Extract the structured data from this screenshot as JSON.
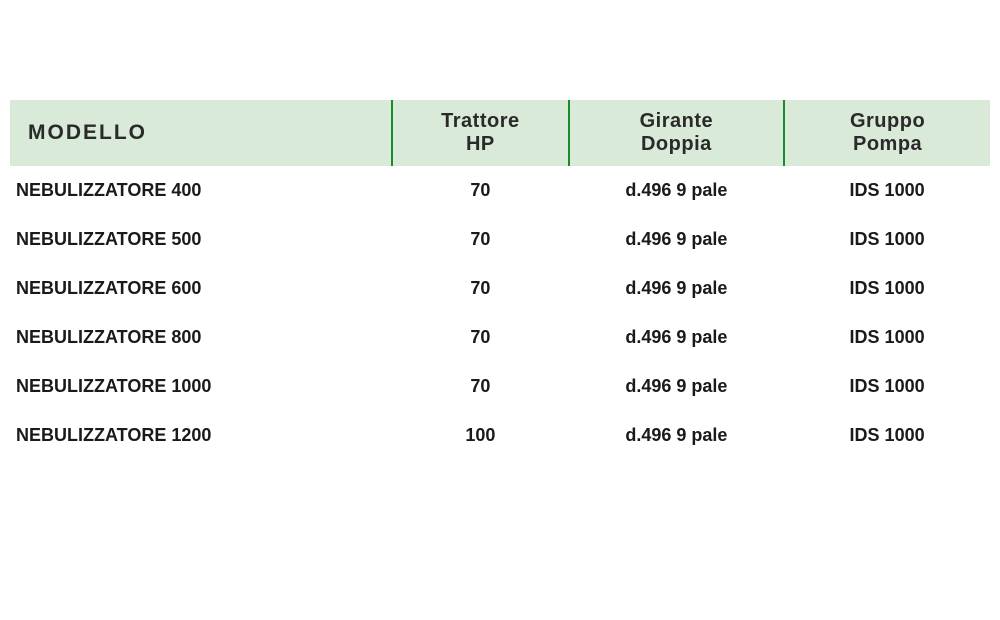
{
  "table": {
    "header_bg": "#d9ead9",
    "separator_color": "#1a8a2a",
    "text_color": "#1a1a1a",
    "header_text_color": "#2a2a2a",
    "columns": [
      {
        "key": "model",
        "line1": "MODELLO",
        "line2": "",
        "align": "left",
        "width_pct": 39
      },
      {
        "key": "tractor",
        "line1": "Trattore",
        "line2": "HP",
        "align": "center",
        "width_pct": 18
      },
      {
        "key": "girante",
        "line1": "Girante",
        "line2": "Doppia",
        "align": "center",
        "width_pct": 22
      },
      {
        "key": "pump",
        "line1": "Gruppo",
        "line2": "Pompa",
        "align": "center",
        "width_pct": 21
      }
    ],
    "rows": [
      {
        "model": "NEBULIZZATORE 400",
        "tractor": "70",
        "girante": "d.496 9 pale",
        "pump": "IDS 1000"
      },
      {
        "model": "NEBULIZZATORE 500",
        "tractor": "70",
        "girante": "d.496 9 pale",
        "pump": "IDS 1000"
      },
      {
        "model": "NEBULIZZATORE 600",
        "tractor": "70",
        "girante": "d.496 9 pale",
        "pump": "IDS 1000"
      },
      {
        "model": "NEBULIZZATORE 800",
        "tractor": "70",
        "girante": "d.496 9 pale",
        "pump": "IDS 1000"
      },
      {
        "model": "NEBULIZZATORE 1000",
        "tractor": "70",
        "girante": "d.496 9 pale",
        "pump": "IDS 1000"
      },
      {
        "model": "NEBULIZZATORE 1200",
        "tractor": "100",
        "girante": "d.496 9 pale",
        "pump": "IDS 1000"
      }
    ]
  }
}
